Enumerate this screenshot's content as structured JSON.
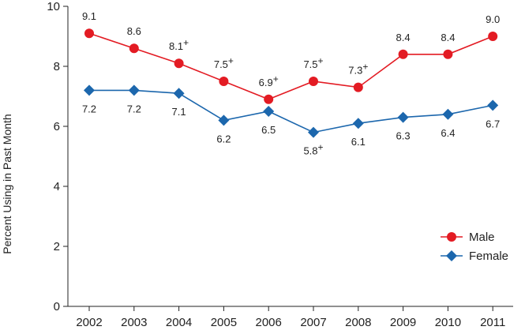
{
  "chart_data": {
    "type": "line",
    "title": "",
    "xlabel": "",
    "ylabel": "Percent Using in Past Month",
    "ylim": [
      0,
      10
    ],
    "yticks": [
      0,
      2,
      4,
      6,
      8,
      10
    ],
    "grid": false,
    "legend_position": "bottom-right",
    "categories": [
      "2002",
      "2003",
      "2004",
      "2005",
      "2006",
      "2007",
      "2008",
      "2009",
      "2010",
      "2011"
    ],
    "series": [
      {
        "name": "Male",
        "color": "#e31b23",
        "marker": "circle",
        "values": [
          9.1,
          8.6,
          8.1,
          7.5,
          6.9,
          7.5,
          7.3,
          8.4,
          8.4,
          9.0
        ],
        "labels": [
          "9.1",
          "8.6",
          "8.1",
          "7.5",
          "6.9",
          "7.5",
          "7.3",
          "8.4",
          "8.4",
          "9.0"
        ],
        "significant": [
          false,
          false,
          true,
          true,
          true,
          true,
          true,
          false,
          false,
          false
        ],
        "label_position": "above"
      },
      {
        "name": "Female",
        "color": "#1c67ad",
        "marker": "diamond",
        "values": [
          7.2,
          7.2,
          7.1,
          6.2,
          6.5,
          5.8,
          6.1,
          6.3,
          6.4,
          6.7
        ],
        "labels": [
          "7.2",
          "7.2",
          "7.1",
          "6.2",
          "6.5",
          "5.8",
          "6.1",
          "6.3",
          "6.4",
          "6.7"
        ],
        "significant": [
          false,
          false,
          false,
          false,
          false,
          true,
          false,
          false,
          false,
          false
        ],
        "label_position": "below"
      }
    ],
    "significance_marker": "+"
  }
}
